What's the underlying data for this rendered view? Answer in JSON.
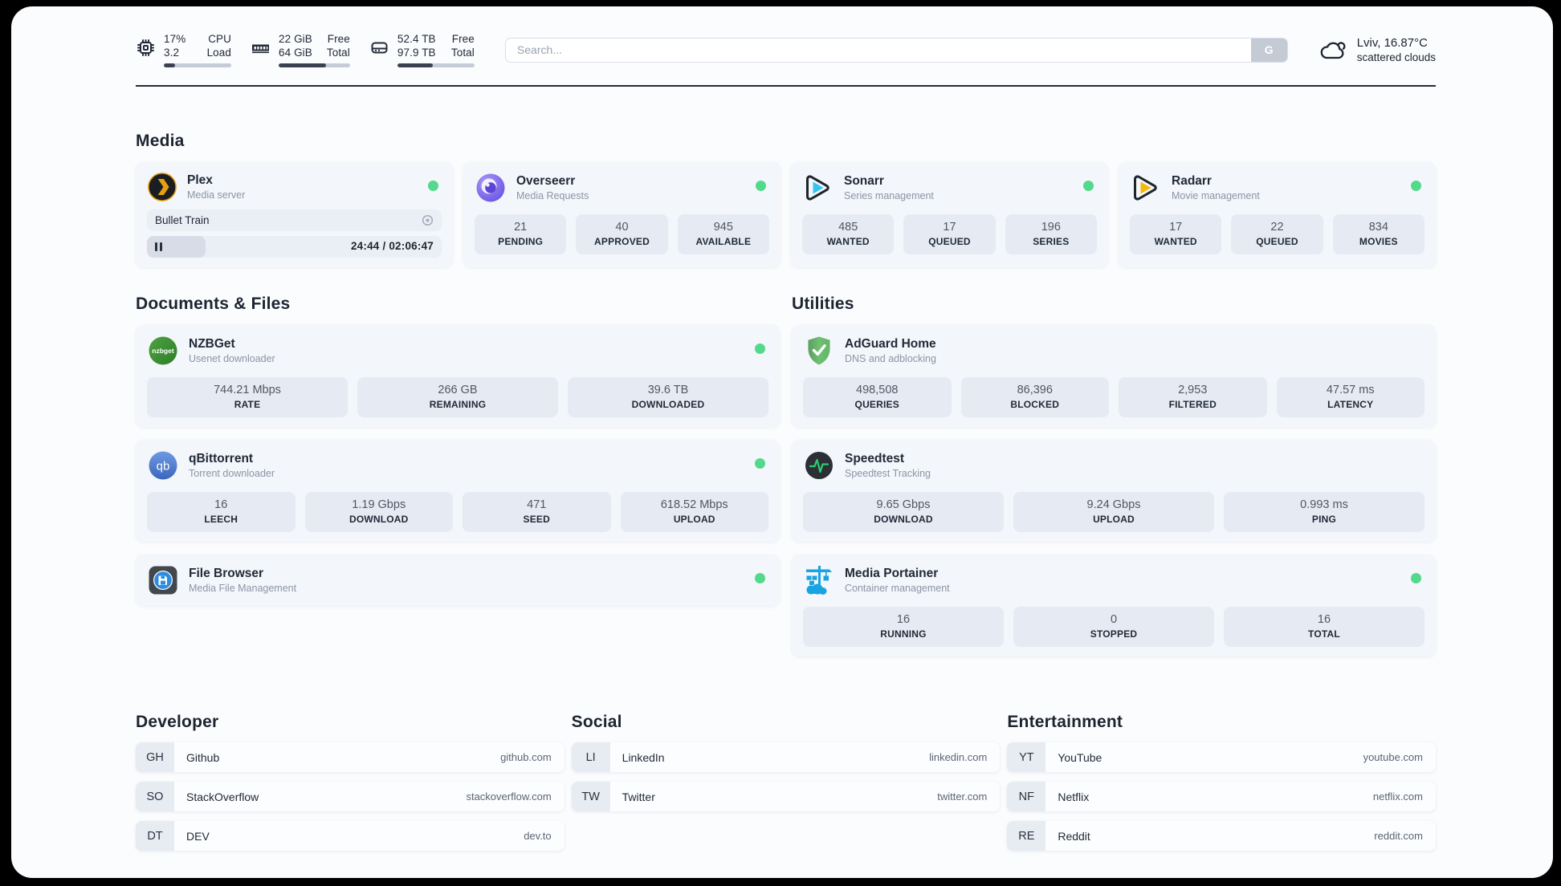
{
  "topbar": {
    "resources": [
      {
        "icon": "cpu-icon",
        "values": [
          "17%",
          "3.2"
        ],
        "labels": [
          "CPU",
          "Load"
        ],
        "progress_pct": 17
      },
      {
        "icon": "memory-icon",
        "values": [
          "22 GiB",
          "64 GiB"
        ],
        "labels": [
          "Free",
          "Total"
        ],
        "progress_pct": 66
      },
      {
        "icon": "disk-icon",
        "values": [
          "52.4 TB",
          "97.9 TB"
        ],
        "labels": [
          "Free",
          "Total"
        ],
        "progress_pct": 46
      }
    ],
    "search": {
      "placeholder": "Search...",
      "button_label": "G"
    },
    "weather": {
      "location_temp": "Lviv, 16.87°C",
      "condition": "scattered clouds"
    }
  },
  "section_titles": {
    "media": "Media",
    "documents": "Documents & Files",
    "utilities": "Utilities",
    "developer": "Developer",
    "social": "Social",
    "entertainment": "Entertainment"
  },
  "apps": {
    "plex": {
      "name": "Plex",
      "desc": "Media server",
      "online": true,
      "now_playing": "Bullet Train",
      "time": "24:44 / 02:06:47",
      "progress_pct": 20
    },
    "overseerr": {
      "name": "Overseerr",
      "desc": "Media Requests",
      "online": true,
      "stats": [
        {
          "v": "21",
          "l": "PENDING"
        },
        {
          "v": "40",
          "l": "APPROVED"
        },
        {
          "v": "945",
          "l": "AVAILABLE"
        }
      ]
    },
    "sonarr": {
      "name": "Sonarr",
      "desc": "Series management",
      "online": true,
      "stats": [
        {
          "v": "485",
          "l": "WANTED"
        },
        {
          "v": "17",
          "l": "QUEUED"
        },
        {
          "v": "196",
          "l": "SERIES"
        }
      ]
    },
    "radarr": {
      "name": "Radarr",
      "desc": "Movie management",
      "online": true,
      "stats": [
        {
          "v": "17",
          "l": "WANTED"
        },
        {
          "v": "22",
          "l": "QUEUED"
        },
        {
          "v": "834",
          "l": "MOVIES"
        }
      ]
    },
    "nzbget": {
      "name": "NZBGet",
      "desc": "Usenet downloader",
      "online": true,
      "stats": [
        {
          "v": "744.21 Mbps",
          "l": "RATE"
        },
        {
          "v": "266 GB",
          "l": "REMAINING"
        },
        {
          "v": "39.6 TB",
          "l": "DOWNLOADED"
        }
      ]
    },
    "qbittorrent": {
      "name": "qBittorrent",
      "desc": "Torrent downloader",
      "online": true,
      "stats": [
        {
          "v": "16",
          "l": "LEECH"
        },
        {
          "v": "1.19 Gbps",
          "l": "DOWNLOAD"
        },
        {
          "v": "471",
          "l": "SEED"
        },
        {
          "v": "618.52 Mbps",
          "l": "UPLOAD"
        }
      ]
    },
    "filebrowser": {
      "name": "File Browser",
      "desc": "Media File Management",
      "online": true
    },
    "adguard": {
      "name": "AdGuard Home",
      "desc": "DNS and adblocking",
      "online": false,
      "stats": [
        {
          "v": "498,508",
          "l": "QUERIES"
        },
        {
          "v": "86,396",
          "l": "BLOCKED"
        },
        {
          "v": "2,953",
          "l": "FILTERED"
        },
        {
          "v": "47.57 ms",
          "l": "LATENCY"
        }
      ]
    },
    "speedtest": {
      "name": "Speedtest",
      "desc": "Speedtest Tracking",
      "online": false,
      "stats": [
        {
          "v": "9.65 Gbps",
          "l": "DOWNLOAD"
        },
        {
          "v": "9.24 Gbps",
          "l": "UPLOAD"
        },
        {
          "v": "0.993 ms",
          "l": "PING"
        }
      ]
    },
    "portainer": {
      "name": "Media Portainer",
      "desc": "Container management",
      "online": true,
      "stats": [
        {
          "v": "16",
          "l": "RUNNING"
        },
        {
          "v": "0",
          "l": "STOPPED"
        },
        {
          "v": "16",
          "l": "TOTAL"
        }
      ]
    }
  },
  "bookmarks": {
    "developer": [
      {
        "abbr": "GH",
        "name": "Github",
        "url": "github.com"
      },
      {
        "abbr": "SO",
        "name": "StackOverflow",
        "url": "stackoverflow.com"
      },
      {
        "abbr": "DT",
        "name": "DEV",
        "url": "dev.to"
      }
    ],
    "social": [
      {
        "abbr": "LI",
        "name": "LinkedIn",
        "url": "linkedin.com"
      },
      {
        "abbr": "TW",
        "name": "Twitter",
        "url": "twitter.com"
      }
    ],
    "entertainment": [
      {
        "abbr": "YT",
        "name": "YouTube",
        "url": "youtube.com"
      },
      {
        "abbr": "NF",
        "name": "Netflix",
        "url": "netflix.com"
      },
      {
        "abbr": "RE",
        "name": "Reddit",
        "url": "reddit.com"
      }
    ]
  },
  "colors": {
    "status_online": "#52d98b",
    "progress_fill": "#3a4252",
    "page_bg": "#fbfcfe"
  }
}
